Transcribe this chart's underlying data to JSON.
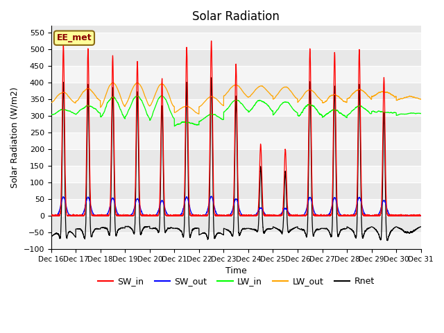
{
  "title": "Solar Radiation",
  "ylabel": "Solar Radiation (W/m2)",
  "xlabel": "Time",
  "ylim": [
    -100,
    570
  ],
  "yticks": [
    -100,
    -50,
    0,
    50,
    100,
    150,
    200,
    250,
    300,
    350,
    400,
    450,
    500,
    550
  ],
  "annotation_text": "EE_met",
  "annotation_color": "#8B0000",
  "annotation_bg": "#FFFF99",
  "legend_colors": [
    "red",
    "blue",
    "lime",
    "orange",
    "black"
  ],
  "legend_labels": [
    "SW_in",
    "SW_out",
    "LW_in",
    "LW_out",
    "Rnet"
  ],
  "grid_color": "#cccccc",
  "bg_color": "#e8e8e8",
  "bg_color2": "#f5f5f5",
  "n_days": 15,
  "start_day": 16,
  "SW_in_peaks": [
    510,
    500,
    480,
    465,
    410,
    505,
    525,
    455,
    215,
    200,
    500,
    490,
    500,
    415,
    0
  ],
  "LW_in_base": [
    302,
    308,
    295,
    295,
    290,
    270,
    285,
    315,
    315,
    305,
    300,
    295,
    305,
    310,
    305
  ],
  "LW_in_noon": [
    320,
    330,
    355,
    360,
    360,
    282,
    305,
    345,
    345,
    342,
    333,
    318,
    328,
    312,
    307
  ],
  "LW_out_base": [
    338,
    345,
    328,
    332,
    328,
    308,
    328,
    358,
    358,
    348,
    343,
    338,
    352,
    358,
    348
  ],
  "LW_out_noon": [
    370,
    380,
    398,
    398,
    396,
    328,
    358,
    392,
    388,
    388,
    378,
    363,
    378,
    372,
    358
  ],
  "Rnet_night": [
    -65,
    -40,
    -37,
    -32,
    -38,
    -38,
    -58,
    -38,
    -38,
    -33,
    -38,
    -38,
    -33,
    -33,
    -33
  ]
}
